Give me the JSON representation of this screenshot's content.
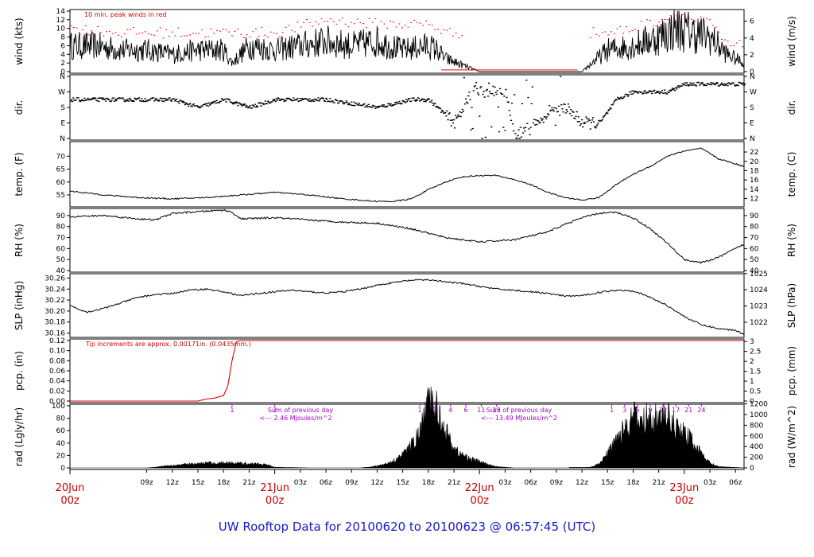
{
  "title": "UW Rooftop Data for 20100620  to  20100623 @ 06:57:45  (UTC)",
  "colors": {
    "peak": "#ff0000",
    "rain": "#dd0000",
    "note": "#cc0000",
    "hour_marks": "#a000c8",
    "title": "#1a1acc",
    "line": "#000000"
  },
  "time_axis": {
    "range_hours": [
      0,
      79
    ],
    "hour_ticks": [
      {
        "h": 9,
        "label": "09z"
      },
      {
        "h": 12,
        "label": "12z"
      },
      {
        "h": 15,
        "label": "15z"
      },
      {
        "h": 18,
        "label": "18z"
      },
      {
        "h": 21,
        "label": "21z"
      },
      {
        "h": 27,
        "label": "03z"
      },
      {
        "h": 30,
        "label": "06z"
      },
      {
        "h": 33,
        "label": "09z"
      },
      {
        "h": 36,
        "label": "12z"
      },
      {
        "h": 39,
        "label": "15z"
      },
      {
        "h": 42,
        "label": "18z"
      },
      {
        "h": 45,
        "label": "21z"
      },
      {
        "h": 51,
        "label": "03z"
      },
      {
        "h": 54,
        "label": "06z"
      },
      {
        "h": 57,
        "label": "09z"
      },
      {
        "h": 60,
        "label": "12z"
      },
      {
        "h": 63,
        "label": "15z"
      },
      {
        "h": 66,
        "label": "18z"
      },
      {
        "h": 69,
        "label": "21z"
      },
      {
        "h": 75,
        "label": "03z"
      },
      {
        "h": 78,
        "label": "06z"
      }
    ],
    "date_labels": [
      {
        "h": 0,
        "day": "20Jun",
        "z": "00z"
      },
      {
        "h": 24,
        "day": "21Jun",
        "z": "00z"
      },
      {
        "h": 48,
        "day": "22Jun",
        "z": "00z"
      },
      {
        "h": 72,
        "day": "23Jun",
        "z": "00z"
      }
    ]
  },
  "panels": {
    "wind": {
      "left_label": "wind (kts)",
      "right_label": "wind (m/s)",
      "left_ticks": [
        "0",
        "2",
        "4",
        "6",
        "8",
        "10",
        "12",
        "14"
      ],
      "right_ticks": [
        "0",
        "2",
        "4",
        "6"
      ],
      "note": "10 min. peak winds in red"
    },
    "dir": {
      "left_label": "dir.",
      "right_label": "dir.",
      "ticks": [
        "N",
        "E",
        "S",
        "W",
        "N"
      ]
    },
    "temp": {
      "left_label": "temp. (F)",
      "right_label": "temp. (C)",
      "left_ticks": [
        "55",
        "60",
        "65",
        "70"
      ],
      "right_ticks": [
        "12",
        "14",
        "16",
        "18",
        "20",
        "22"
      ]
    },
    "rh": {
      "left_label": "RH (%)",
      "right_label": "RH (%)",
      "ticks": [
        "40",
        "50",
        "60",
        "70",
        "80",
        "90"
      ]
    },
    "slp": {
      "left_label": "SLP (inHg)",
      "right_label": "SLP (hPa)",
      "left_ticks": [
        "30.16",
        "30.18",
        "30.20",
        "30.22",
        "30.24",
        "30.26"
      ],
      "right_ticks": [
        "1022",
        "1023",
        "1024",
        "1025"
      ]
    },
    "pcp": {
      "left_label": "pcp. (in)",
      "right_label": "pcp. (mm)",
      "left_ticks": [
        "0.00",
        "0.02",
        "0.04",
        "0.06",
        "0.08",
        "0.10",
        "0.12"
      ],
      "right_ticks": [
        "0",
        "0.5",
        "1",
        "1.5",
        "2",
        "2.5",
        "3"
      ],
      "note": "Tip increments are approx. 0.00171in. (0.0435mm.)"
    },
    "rad": {
      "left_label": "rad (Lgly/hr)",
      "right_label": "rad (W/m^2)",
      "left_ticks": [
        "0",
        "20",
        "40",
        "60",
        "80",
        "100"
      ],
      "right_ticks": [
        "0",
        "200",
        "400",
        "600",
        "800",
        "1000",
        "1200"
      ],
      "sum_label": "Sum of previous day",
      "sum1": "<--- 2.46 MJoules/m^2",
      "sum2": "<--- 13.49 MJoules/m^2",
      "hour_marks_day1": [
        "1",
        "2"
      ],
      "hour_marks_day2": [
        "1",
        "2",
        "4",
        "6",
        "11",
        "13"
      ],
      "hour_marks_day3": [
        "1",
        "3",
        "6",
        "9",
        "12",
        "17",
        "21",
        "24"
      ]
    }
  },
  "chart_data": [
    {
      "type": "line",
      "name": "wind",
      "series": [
        {
          "name": "wind speed (kts)",
          "x": [
            0,
            3,
            6,
            9,
            12,
            15,
            18,
            19,
            21,
            24,
            27,
            30,
            33,
            36,
            39,
            42,
            43,
            44,
            48,
            56,
            60,
            63,
            66,
            69,
            71,
            73,
            75,
            77,
            79
          ],
          "values": [
            6,
            6,
            5,
            5,
            4,
            5,
            5,
            2,
            6,
            5,
            6,
            7,
            6,
            7,
            5,
            6,
            5,
            3,
            0,
            0,
            0,
            5,
            6,
            8,
            10,
            9,
            8,
            4,
            2
          ]
        },
        {
          "name": "10 min. peak winds",
          "x": [
            0,
            6,
            12,
            18,
            24,
            30,
            36,
            42,
            44,
            63,
            66,
            69,
            71,
            73,
            75,
            77
          ],
          "values": [
            10,
            9,
            9,
            9,
            9,
            12,
            11,
            11,
            9,
            9,
            10,
            12,
            13,
            12,
            11,
            6
          ]
        }
      ]
    },
    {
      "type": "scatter",
      "name": "wind direction",
      "x": [
        0,
        6,
        12,
        15,
        18,
        21,
        24,
        30,
        36,
        40,
        42,
        44,
        45,
        47,
        49,
        51,
        52,
        54,
        58,
        60,
        62,
        64,
        66,
        68,
        70,
        72,
        74,
        76,
        78
      ],
      "y": [
        "SW",
        "SW",
        "SW",
        "S",
        "SW",
        "S",
        "SW",
        "SW",
        "S",
        "SW",
        "SW",
        "SE",
        "E",
        "W",
        "W",
        "W",
        "N",
        "E",
        "S",
        "E",
        "E",
        "SW",
        "W",
        "W",
        "W",
        "NW",
        "NW",
        "NW",
        "NW"
      ]
    },
    {
      "type": "line",
      "name": "temp. (F)",
      "x": [
        0,
        4,
        8,
        12,
        16,
        20,
        24,
        28,
        32,
        36,
        38,
        40,
        42,
        44,
        46,
        48,
        50,
        52,
        54,
        56,
        58,
        60,
        62,
        64,
        66,
        68,
        70,
        72,
        74,
        76,
        78,
        79
      ],
      "values": [
        56.5,
        55,
        54,
        53.5,
        54,
        55,
        56,
        55,
        53.5,
        52.5,
        52.5,
        53.5,
        57,
        60,
        62,
        62.5,
        62.5,
        61,
        59,
        56,
        54,
        53,
        54,
        59,
        63,
        66,
        70,
        72,
        73,
        69,
        67,
        66
      ]
    },
    {
      "type": "line",
      "name": "RH (%)",
      "x": [
        0,
        4,
        8,
        10,
        12,
        16,
        18,
        19,
        20,
        24,
        28,
        32,
        36,
        40,
        44,
        48,
        52,
        56,
        58,
        60,
        62,
        64,
        66,
        68,
        70,
        72,
        74,
        76,
        78,
        79
      ],
      "values": [
        89,
        90,
        87,
        86,
        92,
        94,
        95,
        93,
        87,
        88,
        86,
        84,
        83,
        78,
        70,
        66,
        68,
        75,
        82,
        88,
        92,
        93,
        88,
        78,
        65,
        50,
        47,
        52,
        60,
        64
      ]
    },
    {
      "type": "line",
      "name": "SLP (inHg)",
      "x": [
        0,
        2,
        4,
        6,
        8,
        10,
        12,
        14,
        16,
        18,
        20,
        22,
        24,
        26,
        28,
        30,
        32,
        34,
        36,
        38,
        40,
        42,
        44,
        46,
        48,
        50,
        52,
        54,
        56,
        58,
        60,
        62,
        64,
        66,
        68,
        70,
        72,
        74,
        76,
        78,
        79
      ],
      "values": [
        30.21,
        30.198,
        30.205,
        30.215,
        30.225,
        30.23,
        30.232,
        30.238,
        30.24,
        30.235,
        30.228,
        30.232,
        30.235,
        30.238,
        30.235,
        30.233,
        30.235,
        30.24,
        30.247,
        30.252,
        30.256,
        30.257,
        30.253,
        30.25,
        30.245,
        30.24,
        30.238,
        30.235,
        30.232,
        30.227,
        30.228,
        30.234,
        30.238,
        30.237,
        30.225,
        30.21,
        30.19,
        30.175,
        30.168,
        30.165,
        30.158
      ]
    },
    {
      "type": "line",
      "name": "pcp. (in)",
      "x": [
        0,
        15,
        16,
        17,
        18,
        18.5,
        19,
        19.5,
        20,
        79
      ],
      "values": [
        0,
        0,
        0.004,
        0.006,
        0.011,
        0.03,
        0.08,
        0.118,
        0.12,
        0.12
      ]
    },
    {
      "type": "area",
      "name": "rad (Lgly/hr)",
      "x": [
        0,
        6,
        7,
        8,
        9,
        10,
        11,
        12,
        13,
        14,
        15,
        16,
        17,
        18,
        19,
        20,
        21,
        22,
        23,
        24,
        28,
        29,
        30,
        31,
        32,
        33,
        34,
        35,
        36,
        37,
        38,
        39,
        40,
        41,
        42,
        43,
        44,
        45,
        46,
        47,
        48,
        49,
        50,
        52,
        53,
        54,
        55,
        56,
        57,
        58,
        59,
        60,
        61,
        62,
        63,
        64,
        65,
        66,
        67,
        68,
        69,
        70,
        71,
        72,
        73,
        74,
        75,
        76,
        79
      ],
      "values": [
        0,
        0,
        0,
        0,
        0,
        1,
        3,
        4,
        5,
        6,
        6,
        8,
        7,
        8,
        8,
        7,
        7,
        6,
        5,
        1,
        0,
        0,
        0,
        0,
        0,
        0,
        0,
        1,
        3,
        6,
        12,
        20,
        35,
        55,
        100,
        95,
        60,
        30,
        20,
        14,
        10,
        5,
        2,
        0,
        0,
        0,
        0,
        0,
        0,
        0,
        0,
        0,
        1,
        6,
        22,
        45,
        65,
        82,
        70,
        85,
        75,
        80,
        65,
        55,
        42,
        22,
        8,
        2,
        0
      ]
    }
  ]
}
